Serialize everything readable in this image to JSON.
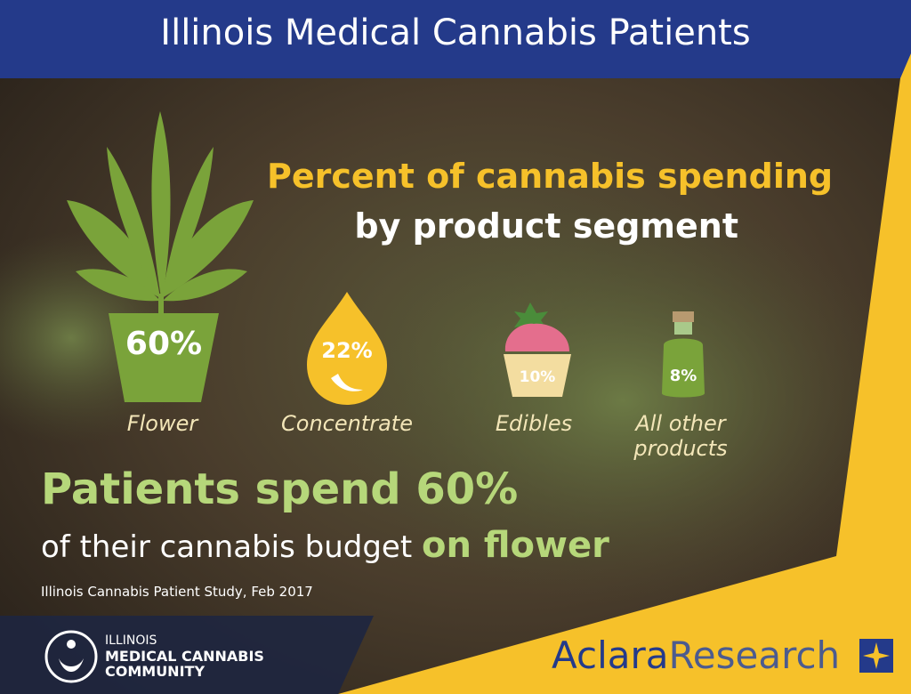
{
  "header": {
    "title": "Illinois Medical Cannabis Patients"
  },
  "subtitle": {
    "line1": "Percent of cannabis spending",
    "line2": "by product segment"
  },
  "segments": [
    {
      "value": "60%",
      "label": "Flower"
    },
    {
      "value": "22%",
      "label": "Concentrate"
    },
    {
      "value": "10%",
      "label": "Edibles"
    },
    {
      "value": "8%",
      "label": "All other products"
    }
  ],
  "headline": {
    "line1": "Patients spend 60%",
    "line2": "of their cannabis budget",
    "emphasis": "on flower"
  },
  "source": "Illinois Cannabis Patient Study, Feb 2017",
  "logos": {
    "imcc": [
      "ILLINOIS",
      "MEDICAL CANNABIS",
      "COMMUNITY"
    ],
    "aclara": [
      "Aclara",
      "Research"
    ]
  }
}
